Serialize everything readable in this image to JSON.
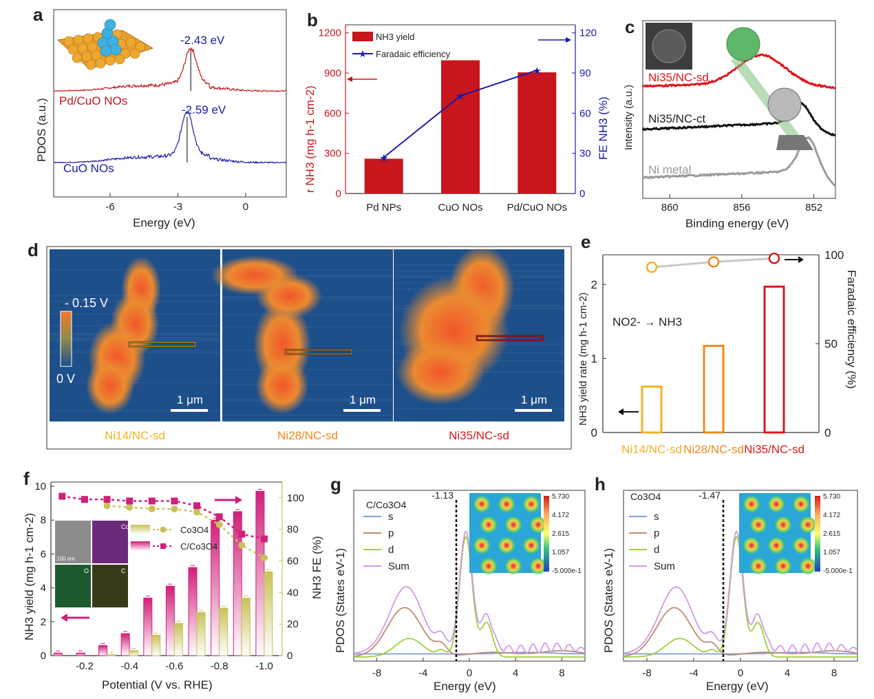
{
  "panels": {
    "a": {
      "letter": "a",
      "ylabel": "PDOS (a.u.)",
      "xlabel": "Energy (eV)",
      "xlim": [
        -8.5,
        1.8
      ],
      "xticks": [
        "-6",
        "-3",
        "0"
      ],
      "xtick_values": [
        -6,
        -3,
        0
      ],
      "curves": [
        {
          "name": "Pd/CuO NOs",
          "color": "#c0161c",
          "peak_label": "-2.43 eV",
          "peak": -2.43
        },
        {
          "name": "CuO NOs",
          "color": "#1a1aa8",
          "peak_label": "-2.59 eV",
          "peak": -2.59
        }
      ]
    },
    "b": {
      "letter": "b",
      "ylabel_left": "r NH3 (mg h-1 cm-2)",
      "ylabel_right": "FE NH3 (%)",
      "yticks_left": [
        "0",
        "300",
        "600",
        "900",
        "1200"
      ],
      "yticks_right": [
        "0",
        "30",
        "60",
        "90",
        "120"
      ],
      "legend_bar": "NH3 yield",
      "legend_line": "Faradaic efficiency",
      "bar_color": "#c8161c",
      "line_color": "#1a1aa8"
    },
    "c": {
      "letter": "c",
      "ylabel": "Intensity (a.u.)",
      "xlabel": "Binding energy (eV)",
      "xticks": [
        "860",
        "856",
        "852"
      ],
      "xtick_values": [
        860,
        856,
        852
      ],
      "curves": [
        {
          "name": "Ni35/NC-sd",
          "color": "#e0161c"
        },
        {
          "name": "Ni35/NC-ct",
          "color": "#111111"
        },
        {
          "name": "Ni metal",
          "color": "#9a9a9a"
        }
      ]
    },
    "d": {
      "letter": "d",
      "scale_top": "- 0.15 V",
      "scale_bottom": "0 V",
      "scalebar": "1 μm",
      "images": [
        {
          "label": "Ni14/NC-sd",
          "color": "#f2b320"
        },
        {
          "label": "Ni28/NC-sd",
          "color": "#f08a18"
        },
        {
          "label": "Ni35/NC-sd",
          "color": "#d61a1a"
        }
      ]
    },
    "e": {
      "letter": "e",
      "ylabel_left": "NH3 yield rate (mg h-1 cm-2)",
      "ylabel_right": "Faradaic efficiency (%)",
      "annotation": "NO2- → NH3",
      "yticks_left": [
        "0",
        "1",
        "2"
      ],
      "yticks_right": [
        "0",
        "50",
        "100"
      ]
    },
    "f": {
      "letter": "f",
      "ylabel_left": "NH3 yield (mg h-1 cm-2)",
      "ylabel_right": "NH3 FE (%)",
      "xlabel": "Potential (V vs. RHE)",
      "xticks": [
        "-0.2",
        "-0.4",
        "-0.6",
        "-0.8",
        "-1.0"
      ],
      "yticks_left": [
        "0",
        "2",
        "4",
        "6",
        "8",
        "10"
      ],
      "yticks_right": [
        "0",
        "20",
        "40",
        "60",
        "80",
        "100"
      ],
      "legend": [
        "Co3O4",
        "C/Co3O4"
      ],
      "inset_labels": [
        "Co",
        "O",
        "C",
        "100 nm"
      ]
    },
    "g": {
      "letter": "g",
      "title": "C/Co3O4",
      "ylabel": "PDOS (States eV-1)",
      "xlabel": "Energy (eV)",
      "xticks": [
        "-8",
        "-4",
        "0",
        "4",
        "8"
      ],
      "xtick_values": [
        -8,
        -4,
        0,
        4,
        8
      ],
      "marker_label": "-1.13",
      "marker": -1.13,
      "legend": [
        "s",
        "p",
        "d",
        "Sum"
      ],
      "colorbar": [
        "5.730",
        "4.172",
        "2.615",
        "1.057",
        "-5.000e-1"
      ]
    },
    "h": {
      "letter": "h",
      "title": "Co3O4",
      "ylabel": "PDOS (States eV-1)",
      "xlabel": "Energy (eV)",
      "xticks": [
        "-8",
        "-4",
        "0",
        "4",
        "8"
      ],
      "xtick_values": [
        -8,
        -4,
        0,
        4,
        8
      ],
      "marker_label": "-1.47",
      "marker": -1.47,
      "legend": [
        "s",
        "p",
        "d",
        "Sum"
      ],
      "colorbar": [
        "5.730",
        "4.172",
        "2.615",
        "1.057",
        "-5.000e-1"
      ]
    }
  },
  "colors": {
    "pdos_s": "#7d9fe0",
    "pdos_p": "#c08a70",
    "pdos_d": "#9ed03a",
    "pdos_sum": "#d29ae8",
    "magenta": "#d0207a",
    "olive": "#c8c25a",
    "kpfm_bg": "#1d4f8a",
    "kpfm_hot": "#f07a2a"
  },
  "chart_data": [
    {
      "panel": "b",
      "type": "bar",
      "categories": [
        "Pd NPs",
        "CuO NOs",
        "Pd/CuO NOs"
      ],
      "series": [
        {
          "name": "NH3 yield",
          "axis": "left",
          "values": [
            260,
            995,
            905
          ]
        },
        {
          "name": "Faradaic efficiency",
          "axis": "right",
          "type": "line",
          "values": [
            27,
            73,
            92
          ]
        }
      ],
      "ylim_left": [
        0,
        1260
      ],
      "ylim_right": [
        0,
        126
      ]
    },
    {
      "panel": "e",
      "type": "bar",
      "categories": [
        "Ni14/NC-sd",
        "Ni28/NC-sd",
        "Ni35/NC-sd"
      ],
      "colors": [
        "#f2b320",
        "#f08a18",
        "#d61a1a"
      ],
      "series": [
        {
          "name": "NH3 yield rate",
          "axis": "left",
          "values": [
            0.62,
            1.17,
            1.97
          ]
        },
        {
          "name": "Faradaic efficiency",
          "axis": "right",
          "type": "scatter",
          "values": [
            93,
            96,
            98
          ]
        }
      ],
      "ylim_left": [
        0,
        2.4
      ],
      "ylim_right": [
        0,
        100
      ]
    },
    {
      "panel": "f",
      "type": "bar",
      "x": [
        -0.1,
        -0.2,
        -0.3,
        -0.4,
        -0.5,
        -0.6,
        -0.7,
        -0.8,
        -0.9,
        -1.0
      ],
      "series": [
        {
          "name": "C/Co3O4",
          "axis": "left",
          "values": [
            0.15,
            0.15,
            0.6,
            1.3,
            3.4,
            4.1,
            5.2,
            8.0,
            8.5,
            9.7
          ]
        },
        {
          "name": "Co3O4",
          "axis": "left",
          "values": [
            0,
            0,
            0.05,
            0.3,
            1.2,
            1.9,
            2.55,
            2.8,
            3.4,
            4.95
          ]
        },
        {
          "name": "C/Co3O4 FE",
          "axis": "right",
          "type": "line",
          "values": [
            101,
            99,
            99,
            98,
            98,
            98,
            95,
            88,
            77,
            74
          ]
        },
        {
          "name": "Co3O4 FE",
          "axis": "right",
          "type": "line",
          "values": [
            null,
            null,
            95,
            94,
            93,
            93,
            91,
            83,
            70,
            62
          ]
        }
      ],
      "ylim_left": [
        0,
        10
      ],
      "ylim_right": [
        0,
        110
      ],
      "xlim": [
        -0.05,
        -1.08
      ]
    }
  ]
}
